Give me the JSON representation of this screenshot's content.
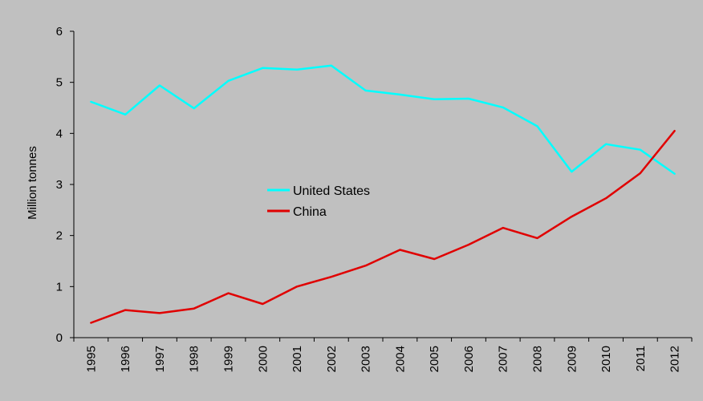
{
  "chart_data": {
    "type": "line",
    "title": "",
    "xlabel": "",
    "ylabel": "Million tonnes",
    "x": [
      "1995",
      "1996",
      "1997",
      "1998",
      "1999",
      "2000",
      "2001",
      "2002",
      "2003",
      "2004",
      "2005",
      "2006",
      "2007",
      "2008",
      "2009",
      "2010",
      "2011",
      "2012"
    ],
    "ylim": [
      0,
      6
    ],
    "yticks": [
      0,
      1,
      2,
      3,
      4,
      5,
      6
    ],
    "grid": false,
    "legend_position": "center",
    "series": [
      {
        "name": "United States",
        "color": "#00ffff",
        "values": [
          4.62,
          4.37,
          4.94,
          4.49,
          5.03,
          5.28,
          5.25,
          5.33,
          4.84,
          4.76,
          4.67,
          4.68,
          4.51,
          4.14,
          3.25,
          3.79,
          3.68,
          3.21
        ]
      },
      {
        "name": "China",
        "color": "#e00000",
        "values": [
          0.29,
          0.54,
          0.48,
          0.57,
          0.87,
          0.66,
          1.0,
          1.19,
          1.41,
          1.72,
          1.54,
          1.82,
          2.15,
          1.95,
          2.37,
          2.73,
          3.22,
          4.05
        ]
      }
    ]
  }
}
